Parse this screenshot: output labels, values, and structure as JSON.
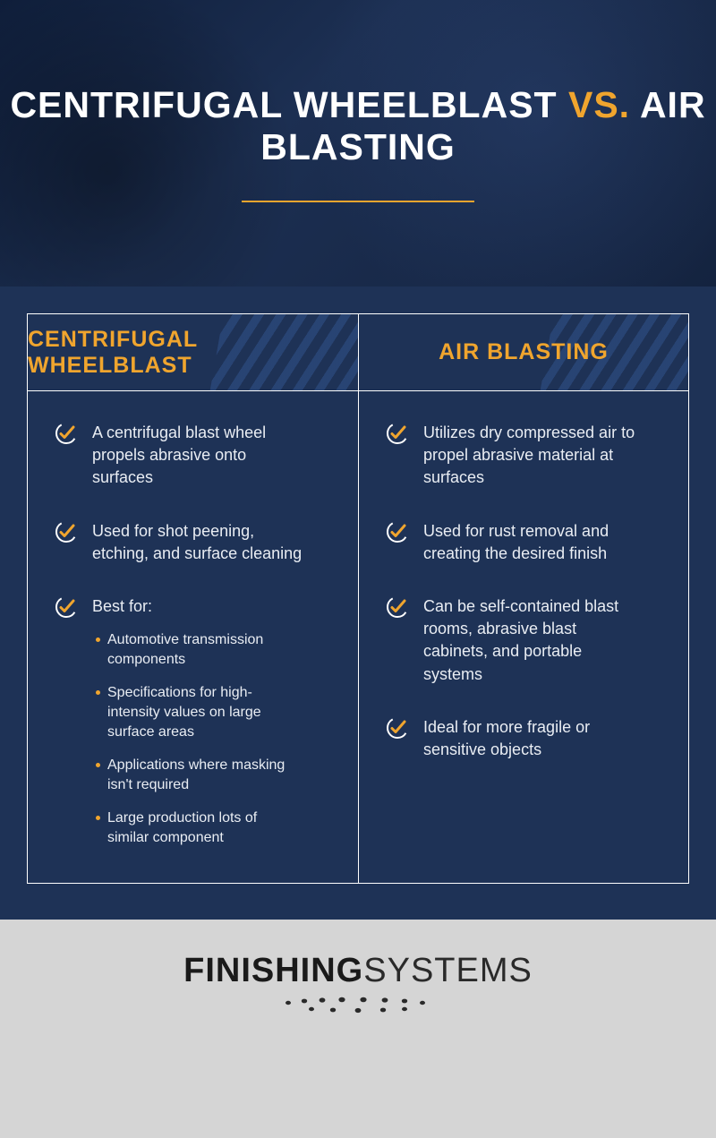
{
  "colors": {
    "accent": "#f0a52e",
    "panel_bg": "#1e3256",
    "border": "#ffffff",
    "text": "#e9edf3",
    "footer_bg": "#d5d5d5",
    "logo_dark": "#2a2a2a"
  },
  "hero": {
    "title_part1": "CENTRIFUGAL WHEELBLAST ",
    "title_vs": "VS.",
    "title_part2": " AIR BLASTING"
  },
  "columns": {
    "left": {
      "header": "CENTRIFUGAL WHEELBLAST",
      "items": [
        {
          "text": "A centrifugal blast wheel propels abrasive onto surfaces"
        },
        {
          "text": "Used for shot peening, etching, and surface cleaning"
        },
        {
          "text": "Best for:",
          "sub": [
            "Automotive transmission components",
            "Specifications for high-intensity values on large surface areas",
            "Applications where masking isn't required",
            "Large production lots of similar component"
          ]
        }
      ]
    },
    "right": {
      "header": "AIR BLASTING",
      "items": [
        {
          "text": "Utilizes dry compressed air to propel abrasive material at surfaces"
        },
        {
          "text": "Used for rust removal and creating the desired finish"
        },
        {
          "text": "Can be self-contained blast rooms, abrasive blast cabinets, and portable systems"
        },
        {
          "text": "Ideal for more fragile or sensitive objects"
        }
      ]
    }
  },
  "footer": {
    "logo_bold": "FINISHING",
    "logo_light": "SYSTEMS"
  }
}
